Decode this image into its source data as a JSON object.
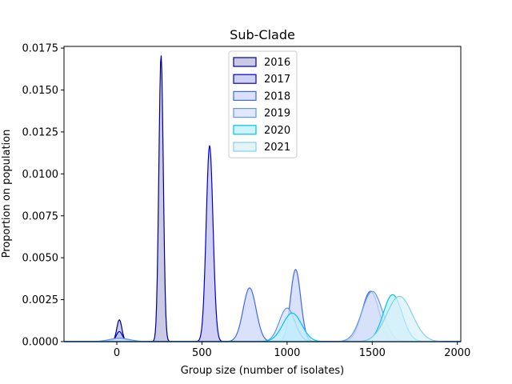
{
  "chart_data": {
    "type": "area",
    "title": "Sub-Clade",
    "xlabel": "Group size (number of isolates)",
    "ylabel": "Proportion on population",
    "xlim": [
      -310,
      2020
    ],
    "ylim": [
      0,
      0.0176
    ],
    "xticks": [
      0,
      500,
      1000,
      1500,
      2000
    ],
    "yticks": [
      0.0,
      0.0025,
      0.005,
      0.0075,
      0.01,
      0.0125,
      0.015,
      0.0175
    ],
    "ytick_labels": [
      "0.0000",
      "0.0025",
      "0.0050",
      "0.0075",
      "0.0100",
      "0.0125",
      "0.0150",
      "0.0175"
    ],
    "grid": false,
    "legend_position": "top-center",
    "series": [
      {
        "name": "2016",
        "color": "#00008b",
        "fill": "#b8b8dc",
        "peaks": [
          {
            "x": 15,
            "height": 0.0013,
            "sd": 15
          },
          {
            "x": 260,
            "height": 0.0171,
            "sd": 13
          }
        ]
      },
      {
        "name": "2017",
        "color": "#0000cd",
        "fill": "#c0c0f0",
        "peaks": [
          {
            "x": 15,
            "height": 0.0006,
            "sd": 18
          },
          {
            "x": 545,
            "height": 0.0117,
            "sd": 20
          }
        ]
      },
      {
        "name": "2018",
        "color": "#4169e1",
        "fill": "#cdd7f8",
        "peaks": [
          {
            "x": 15,
            "height": 0.0002,
            "sd": 40
          },
          {
            "x": 780,
            "height": 0.0032,
            "sd": 38
          },
          {
            "x": 1050,
            "height": 0.0043,
            "sd": 30
          },
          {
            "x": 1490,
            "height": 0.003,
            "sd": 50
          }
        ]
      },
      {
        "name": "2019",
        "color": "#6495ed",
        "fill": "#d6e2fa",
        "peaks": [
          {
            "x": 15,
            "height": 0.0002,
            "sd": 60
          },
          {
            "x": 1000,
            "height": 0.002,
            "sd": 45
          },
          {
            "x": 1500,
            "height": 0.003,
            "sd": 60
          }
        ]
      },
      {
        "name": "2020",
        "color": "#00bfff",
        "fill": "#bdeffc",
        "peaks": [
          {
            "x": 1030,
            "height": 0.0017,
            "sd": 55
          },
          {
            "x": 1620,
            "height": 0.0028,
            "sd": 55
          }
        ]
      },
      {
        "name": "2021",
        "color": "#87ceeb",
        "fill": "#daf0f8",
        "peaks": [
          {
            "x": 1660,
            "height": 0.0027,
            "sd": 75
          }
        ]
      }
    ]
  }
}
